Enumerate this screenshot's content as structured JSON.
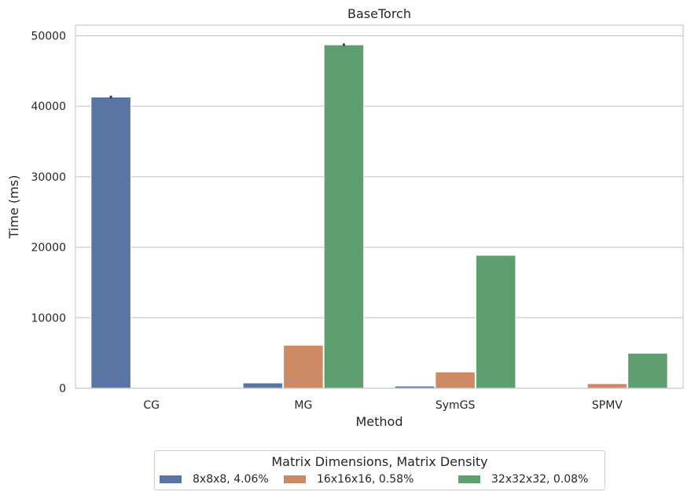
{
  "chart_data": {
    "type": "bar",
    "title": "BaseTorch",
    "xlabel": "Method",
    "ylabel": "Time (ms)",
    "categories": [
      "CG",
      "MG",
      "SymGS",
      "SPMV"
    ],
    "ylim": [
      0,
      51500
    ],
    "yticks": [
      0,
      10000,
      20000,
      30000,
      40000,
      50000
    ],
    "grid": true,
    "legend_title": "Matrix Dimensions, Matrix Density",
    "legend_position": "bottom-center",
    "series": [
      {
        "name": "8x8x8, 4.06%",
        "color": "#5875a4",
        "values": [
          41300,
          750,
          300,
          70
        ]
      },
      {
        "name": "16x16x16, 0.58%",
        "color": "#cc8963",
        "values": [
          0,
          6100,
          2300,
          650
        ]
      },
      {
        "name": "32x32x32, 0.08%",
        "color": "#5f9e6e",
        "values": [
          0,
          48700,
          18850,
          4950
        ]
      }
    ],
    "error_bars": [
      {
        "series": 0,
        "category": 0,
        "low": 41100,
        "high": 41500
      },
      {
        "series": 2,
        "category": 1,
        "low": 48550,
        "high": 48900
      }
    ]
  }
}
